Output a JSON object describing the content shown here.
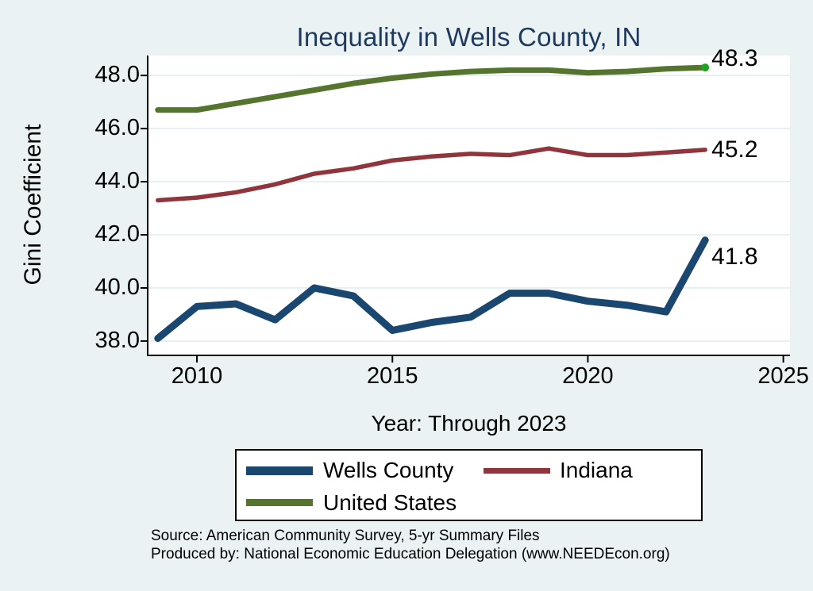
{
  "title": "Inequality in Wells County, IN",
  "y_axis_label": "Gini Coefficient",
  "x_axis_label": "Year: Through 2023",
  "source": {
    "line1": "Source: American Community Survey, 5-yr Summary Files",
    "line2": "Produced by: National Economic Education Delegation (www.NEEDEcon.org)"
  },
  "colors": {
    "background": "#eaf2f3",
    "plot_background": "#ffffff",
    "gridline": "#e2edef",
    "axis": "#000000",
    "title": "#1e3a5f",
    "text": "#000000",
    "endpoint_dot": "#1fa41f"
  },
  "legend": {
    "items": [
      {
        "label": "Wells County",
        "color": "#1a476f"
      },
      {
        "label": "Indiana",
        "color": "#90353b"
      },
      {
        "label": "United States",
        "color": "#55752f"
      }
    ]
  },
  "chart_data": {
    "type": "line",
    "title": "Inequality in Wells County, IN",
    "xlabel": "Year: Through 2023",
    "ylabel": "Gini Coefficient",
    "x": [
      2009,
      2010,
      2011,
      2012,
      2013,
      2014,
      2015,
      2016,
      2017,
      2018,
      2019,
      2020,
      2021,
      2022,
      2023
    ],
    "series": [
      {
        "name": "Wells County",
        "color": "#1a476f",
        "line_width": 9,
        "values": [
          38.1,
          39.3,
          39.4,
          38.8,
          40.0,
          39.7,
          38.4,
          38.7,
          38.9,
          39.8,
          39.8,
          39.5,
          39.35,
          39.1,
          41.8
        ]
      },
      {
        "name": "Indiana",
        "color": "#90353b",
        "line_width": 5.5,
        "values": [
          43.3,
          43.4,
          43.6,
          43.9,
          44.3,
          44.5,
          44.8,
          44.95,
          45.05,
          45.0,
          45.25,
          45.0,
          45.0,
          45.1,
          45.2
        ]
      },
      {
        "name": "United States",
        "color": "#55752f",
        "line_width": 7,
        "end_dot": true,
        "values": [
          46.7,
          46.7,
          46.95,
          47.2,
          47.45,
          47.7,
          47.9,
          48.05,
          48.15,
          48.2,
          48.2,
          48.1,
          48.15,
          48.25,
          48.3
        ]
      }
    ],
    "end_labels": [
      {
        "text": "48.3",
        "series_index": 2
      },
      {
        "text": "45.2",
        "series_index": 1
      },
      {
        "text": "41.8",
        "series_index": 0
      }
    ],
    "x_ticks": [
      {
        "value": 2010,
        "label": "2010"
      },
      {
        "value": 2015,
        "label": "2015"
      },
      {
        "value": 2020,
        "label": "2020"
      },
      {
        "value": 2025,
        "label": "2025"
      }
    ],
    "y_ticks": [
      {
        "value": 48,
        "label": "48.0"
      },
      {
        "value": 46,
        "label": "46.0"
      },
      {
        "value": 44,
        "label": "44.0"
      },
      {
        "value": 42,
        "label": "42.0"
      },
      {
        "value": 40,
        "label": "40.0"
      },
      {
        "value": 38,
        "label": "38.0"
      }
    ],
    "xlim": [
      2008.74,
      2025.17
    ],
    "ylim": [
      37.46,
      48.75
    ],
    "grid": true,
    "legend_position": "bottom"
  }
}
